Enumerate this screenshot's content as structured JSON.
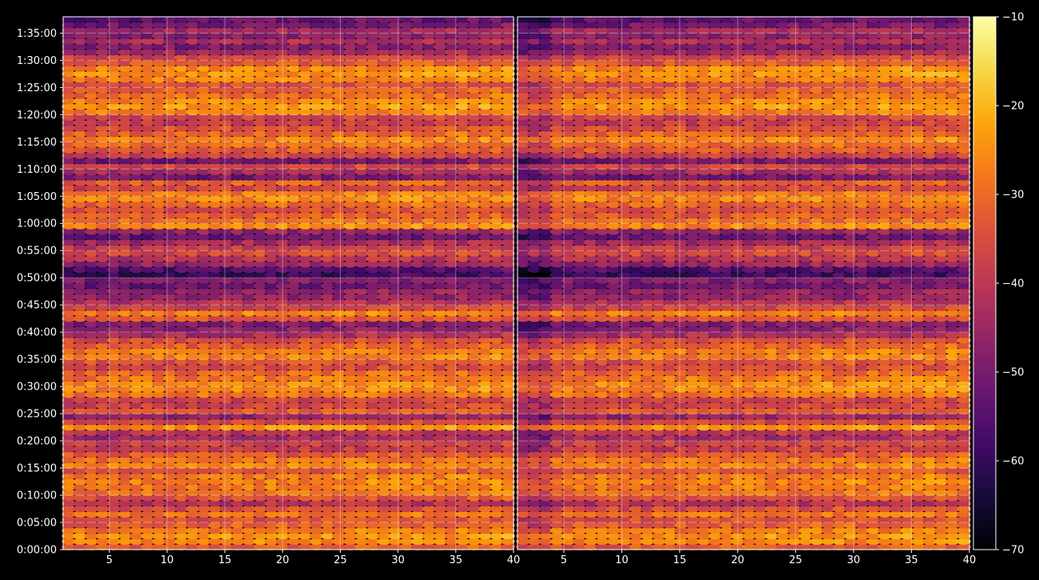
{
  "chart_data": {
    "type": "heatmap",
    "title": "",
    "xlabel": "",
    "ylabel": "",
    "background_color": "#000000",
    "grid": true,
    "colormap": "inferno",
    "panels": [
      {
        "name": "",
        "xlim": [
          1,
          40
        ],
        "xticks": [
          5,
          10,
          15,
          20,
          25,
          30,
          35,
          40
        ]
      },
      {
        "name": "",
        "xlim": [
          1,
          40
        ],
        "xticks": [
          5,
          10,
          15,
          20,
          25,
          30,
          35,
          40
        ]
      }
    ],
    "y_axis": {
      "unit": "seconds",
      "lim": [
        0,
        5880
      ],
      "ticks": [
        0,
        300,
        600,
        900,
        1200,
        1500,
        1800,
        2100,
        2400,
        2700,
        3000,
        3300,
        3600,
        3900,
        4200,
        4500,
        4800,
        5100,
        5400,
        5700
      ],
      "tick_labels": [
        "0:00:00",
        "0:05:00",
        "0:10:00",
        "0:15:00",
        "0:20:00",
        "0:25:00",
        "0:30:00",
        "0:35:00",
        "0:40:00",
        "0:45:00",
        "0:50:00",
        "0:55:00",
        "1:00:00",
        "1:05:00",
        "1:10:00",
        "1:15:00",
        "1:20:00",
        "1:25:00",
        "1:30:00",
        "1:35:00"
      ]
    },
    "colorbar": {
      "lim": [
        -70,
        -10
      ],
      "ticks": [
        -10,
        -20,
        -30,
        -40,
        -50,
        -60,
        -70
      ],
      "tick_labels": [
        "−10",
        "−20",
        "−30",
        "−40",
        "−50",
        "−60",
        "−70"
      ]
    },
    "row_levels": {
      "description": "Approximate per-time-band mean level (dB) read from the heatmap, in order from bottom (0:00:00) to top (1:38:00), one value per 60 s row.",
      "row_seconds": 60,
      "values": [
        -34,
        -27,
        -26,
        -29,
        -33,
        -36,
        -30,
        -36,
        -43,
        -35,
        -30,
        -29,
        -28,
        -29,
        -35,
        -28,
        -30,
        -34,
        -40,
        -38,
        -45,
        -42,
        -26,
        -38,
        -47,
        -34,
        -38,
        -39,
        -30,
        -27,
        -27,
        -29,
        -32,
        -37,
        -35,
        -28,
        -29,
        -33,
        -36,
        -44,
        -49,
        -50,
        -35,
        -28,
        -38,
        -43,
        -48,
        -48,
        -53,
        -50,
        -60,
        -57,
        -47,
        -42,
        -37,
        -40,
        -45,
        -54,
        -48,
        -27,
        -31,
        -34,
        -36,
        -32,
        -27,
        -29,
        -38,
        -33,
        -52,
        -45,
        -38,
        -52,
        -39,
        -34,
        -31,
        -28,
        -32,
        -36,
        -40,
        -38,
        -28,
        -25,
        -27,
        -31,
        -33,
        -36,
        -28,
        -26,
        -27,
        -34,
        -38,
        -46,
        -50,
        -44,
        -49,
        -45,
        -52,
        -55
      ]
    }
  }
}
